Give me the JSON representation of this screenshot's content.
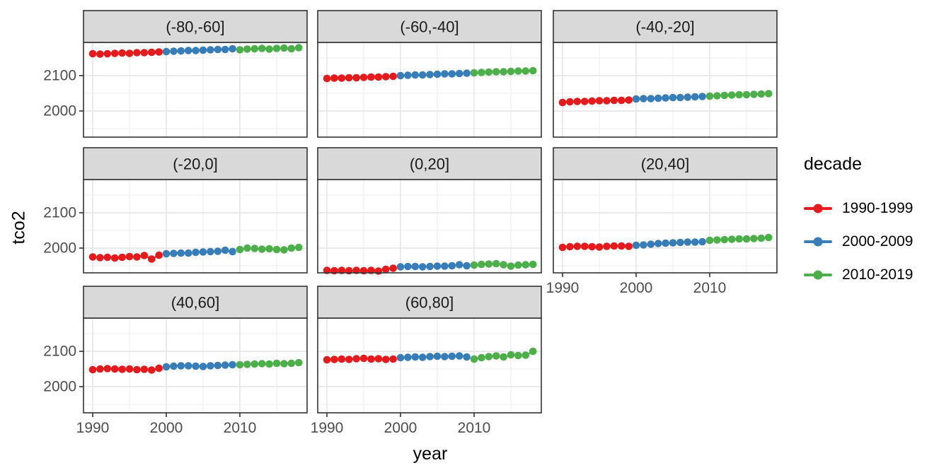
{
  "chart_data": {
    "type": "scatter",
    "title": "",
    "xlabel": "year",
    "ylabel": "tco2",
    "grid": true,
    "legend_position": "right",
    "legend": {
      "title": "decade",
      "entries": [
        {
          "label": "1990-1999",
          "color": "#E41A1C"
        },
        {
          "label": "2000-2009",
          "color": "#377EB8"
        },
        {
          "label": "2010-2019",
          "color": "#4DAF4A"
        }
      ]
    },
    "x_start": 1990,
    "x_end": 2018,
    "x_ticks": [
      1990,
      2000,
      2010
    ],
    "y_ticks": [
      2100,
      2000
    ],
    "ylim": [
      1926,
      2194
    ],
    "xlim": [
      1988.6,
      2019.4
    ],
    "style": {
      "strip_fill": "#D9D9D9",
      "border_color": "#333333",
      "grid_major": "#E4E4E4",
      "grid_minor": "#F1F1F1",
      "panel_fill": "#FFFFFF",
      "tick_text": "#4d4d4d",
      "strip_text": "#1a1a1a"
    },
    "facets": [
      {
        "label": "(-80,-60]",
        "values": [
          2162,
          2161,
          2162,
          2163,
          2164,
          2163,
          2165,
          2165,
          2166,
          2167,
          2168,
          2169,
          2170,
          2171,
          2171,
          2172,
          2173,
          2174,
          2174,
          2176,
          2173,
          2175,
          2176,
          2177,
          2175,
          2177,
          2178,
          2176,
          2179
        ]
      },
      {
        "label": "(-60,-40]",
        "values": [
          2092,
          2093,
          2093,
          2094,
          2094,
          2095,
          2096,
          2096,
          2097,
          2098,
          2100,
          2101,
          2102,
          2102,
          2103,
          2104,
          2105,
          2105,
          2106,
          2107,
          2108,
          2109,
          2110,
          2111,
          2111,
          2112,
          2113,
          2113,
          2114
        ]
      },
      {
        "label": "(-40,-20]",
        "values": [
          2024,
          2026,
          2027,
          2027,
          2028,
          2029,
          2029,
          2030,
          2030,
          2031,
          2034,
          2035,
          2035,
          2036,
          2037,
          2038,
          2038,
          2039,
          2040,
          2041,
          2042,
          2043,
          2044,
          2045,
          2046,
          2046,
          2047,
          2048,
          2049
        ]
      },
      {
        "label": "(-20,0]",
        "values": [
          1975,
          1973,
          1974,
          1972,
          1974,
          1976,
          1975,
          1979,
          1969,
          1980,
          1984,
          1985,
          1986,
          1986,
          1988,
          1989,
          1990,
          1991,
          1994,
          1990,
          1996,
          2000,
          1999,
          1997,
          1998,
          1996,
          1995,
          2000,
          2002
        ]
      },
      {
        "label": "(0,20]",
        "values": [
          1937,
          1936,
          1937,
          1936,
          1937,
          1936,
          1937,
          1935,
          1940,
          1943,
          1947,
          1948,
          1948,
          1947,
          1948,
          1949,
          1949,
          1950,
          1953,
          1950,
          1952,
          1954,
          1955,
          1956,
          1953,
          1949,
          1952,
          1953,
          1954
        ]
      },
      {
        "label": "(20,40]",
        "values": [
          2002,
          2004,
          2005,
          2005,
          2004,
          2003,
          2005,
          2006,
          2006,
          2005,
          2008,
          2009,
          2011,
          2013,
          2014,
          2015,
          2016,
          2017,
          2017,
          2018,
          2022,
          2023,
          2024,
          2025,
          2026,
          2026,
          2027,
          2028,
          2030
        ]
      },
      {
        "label": "(40,60]",
        "values": [
          2048,
          2050,
          2051,
          2050,
          2049,
          2050,
          2048,
          2049,
          2047,
          2052,
          2056,
          2058,
          2059,
          2059,
          2058,
          2057,
          2059,
          2060,
          2061,
          2062,
          2062,
          2063,
          2064,
          2065,
          2064,
          2066,
          2065,
          2066,
          2068
        ]
      },
      {
        "label": "(60,80]",
        "values": [
          2076,
          2077,
          2078,
          2077,
          2079,
          2080,
          2078,
          2079,
          2077,
          2078,
          2082,
          2083,
          2084,
          2083,
          2085,
          2086,
          2085,
          2086,
          2087,
          2084,
          2078,
          2082,
          2085,
          2087,
          2084,
          2090,
          2088,
          2089,
          2100
        ]
      }
    ]
  }
}
